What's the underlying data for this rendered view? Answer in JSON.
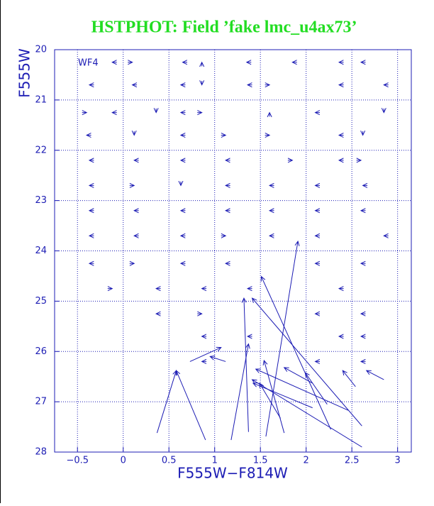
{
  "chart_data": {
    "type": "quiver",
    "title": "HSTPHOT: Field ’fake lmc_u4ax73’",
    "annotation": "WF4",
    "xlabel": "F555W−F814W",
    "ylabel": "F555W",
    "xlim": [
      -0.75,
      3.15
    ],
    "ylim": [
      28,
      20
    ],
    "xticks": [
      {
        "value": -0.5,
        "label": "−0.5"
      },
      0,
      0.5,
      1,
      1.5,
      2,
      2.5,
      3
    ],
    "yticks": [
      20,
      21,
      22,
      23,
      24,
      25,
      26,
      27,
      28
    ],
    "grid": true,
    "color": "#1c1cb4",
    "arrows": [
      [
        -0.07,
        20.25,
        -0.12,
        20.25
      ],
      [
        0.05,
        20.25,
        0.1,
        20.25
      ],
      [
        0.7,
        20.25,
        0.65,
        20.25
      ],
      [
        0.86,
        20.33,
        0.86,
        20.25
      ],
      [
        1.4,
        20.25,
        1.35,
        20.25
      ],
      [
        1.9,
        20.25,
        1.85,
        20.25
      ],
      [
        2.41,
        20.25,
        2.36,
        20.25
      ],
      [
        2.65,
        20.25,
        2.6,
        20.25
      ],
      [
        -0.32,
        20.7,
        -0.37,
        20.7
      ],
      [
        0.15,
        20.7,
        0.1,
        20.7
      ],
      [
        0.68,
        20.7,
        0.63,
        20.7
      ],
      [
        0.86,
        20.62,
        0.86,
        20.7
      ],
      [
        1.41,
        20.7,
        1.36,
        20.7
      ],
      [
        1.55,
        20.7,
        1.6,
        20.7
      ],
      [
        2.41,
        20.7,
        2.36,
        20.7
      ],
      [
        2.9,
        20.7,
        2.85,
        20.7
      ],
      [
        -0.45,
        21.25,
        -0.4,
        21.25
      ],
      [
        -0.07,
        21.25,
        -0.12,
        21.25
      ],
      [
        0.36,
        21.17,
        0.36,
        21.25
      ],
      [
        0.68,
        21.25,
        0.63,
        21.25
      ],
      [
        0.81,
        21.25,
        0.86,
        21.25
      ],
      [
        1.6,
        21.33,
        1.6,
        21.25
      ],
      [
        2.15,
        21.25,
        2.1,
        21.25
      ],
      [
        2.85,
        21.17,
        2.85,
        21.25
      ],
      [
        -0.35,
        21.7,
        -0.4,
        21.7
      ],
      [
        0.12,
        21.62,
        0.12,
        21.7
      ],
      [
        0.68,
        21.7,
        0.63,
        21.7
      ],
      [
        1.07,
        21.7,
        1.12,
        21.7
      ],
      [
        1.55,
        21.7,
        1.6,
        21.7
      ],
      [
        2.41,
        21.7,
        2.36,
        21.7
      ],
      [
        2.62,
        21.62,
        2.62,
        21.7
      ],
      [
        -0.32,
        22.2,
        -0.37,
        22.2
      ],
      [
        0.17,
        22.2,
        0.12,
        22.2
      ],
      [
        0.68,
        22.2,
        0.63,
        22.2
      ],
      [
        1.17,
        22.2,
        1.12,
        22.2
      ],
      [
        1.8,
        22.2,
        1.85,
        22.2
      ],
      [
        2.41,
        22.2,
        2.36,
        22.2
      ],
      [
        2.55,
        22.2,
        2.6,
        22.2
      ],
      [
        -0.32,
        22.7,
        -0.37,
        22.7
      ],
      [
        0.07,
        22.7,
        0.12,
        22.7
      ],
      [
        0.63,
        22.62,
        0.63,
        22.7
      ],
      [
        1.17,
        22.7,
        1.12,
        22.7
      ],
      [
        1.65,
        22.7,
        1.6,
        22.7
      ],
      [
        2.15,
        22.7,
        2.1,
        22.7
      ],
      [
        2.67,
        22.7,
        2.62,
        22.7
      ],
      [
        -0.32,
        23.2,
        -0.37,
        23.2
      ],
      [
        0.17,
        23.2,
        0.12,
        23.2
      ],
      [
        0.68,
        23.2,
        0.63,
        23.2
      ],
      [
        1.17,
        23.2,
        1.12,
        23.2
      ],
      [
        1.65,
        23.2,
        1.6,
        23.2
      ],
      [
        2.15,
        23.2,
        2.1,
        23.2
      ],
      [
        2.65,
        23.2,
        2.6,
        23.2
      ],
      [
        -0.32,
        23.7,
        -0.37,
        23.7
      ],
      [
        0.17,
        23.7,
        0.12,
        23.7
      ],
      [
        0.68,
        23.7,
        0.63,
        23.7
      ],
      [
        1.07,
        23.7,
        1.12,
        23.7
      ],
      [
        1.65,
        23.7,
        1.6,
        23.7
      ],
      [
        2.15,
        23.7,
        2.1,
        23.7
      ],
      [
        2.9,
        23.7,
        2.85,
        23.7
      ],
      [
        -0.32,
        24.25,
        -0.37,
        24.25
      ],
      [
        0.07,
        24.25,
        0.12,
        24.25
      ],
      [
        0.68,
        24.25,
        0.63,
        24.25
      ],
      [
        1.17,
        24.25,
        1.12,
        24.25
      ],
      [
        2.15,
        24.25,
        2.1,
        24.25
      ],
      [
        2.65,
        24.25,
        2.6,
        24.25
      ],
      [
        -0.17,
        24.75,
        -0.12,
        24.75
      ],
      [
        0.41,
        24.75,
        0.36,
        24.75
      ],
      [
        0.91,
        24.75,
        0.86,
        24.75
      ],
      [
        1.41,
        24.75,
        1.36,
        24.75
      ],
      [
        2.41,
        24.75,
        2.36,
        24.75
      ],
      [
        0.41,
        25.25,
        0.36,
        25.25
      ],
      [
        0.81,
        25.25,
        0.86,
        25.25
      ],
      [
        2.15,
        25.25,
        2.1,
        25.25
      ],
      [
        2.65,
        25.25,
        2.6,
        25.25
      ],
      [
        0.91,
        25.7,
        0.86,
        25.7
      ],
      [
        1.41,
        25.7,
        1.36,
        25.7
      ],
      [
        2.41,
        25.7,
        2.36,
        25.7
      ],
      [
        2.65,
        25.7,
        2.6,
        25.7
      ],
      [
        0.91,
        26.2,
        0.86,
        26.2
      ],
      [
        2.15,
        26.2,
        2.1,
        26.2
      ],
      [
        2.65,
        26.2,
        2.6,
        26.2
      ],
      [
        0.37,
        27.62,
        0.58,
        26.38
      ],
      [
        0.9,
        27.76,
        0.58,
        26.38
      ],
      [
        0.73,
        26.2,
        1.07,
        25.92
      ],
      [
        1.12,
        26.2,
        0.95,
        26.1
      ],
      [
        1.18,
        27.76,
        1.37,
        25.85
      ],
      [
        1.37,
        27.6,
        1.32,
        24.94
      ],
      [
        1.56,
        27.69,
        1.91,
        23.81
      ],
      [
        2.27,
        27.55,
        1.51,
        24.51
      ],
      [
        2.61,
        27.48,
        1.41,
        24.94
      ],
      [
        2.61,
        27.9,
        1.41,
        26.56
      ],
      [
        2.46,
        27.17,
        1.45,
        26.35
      ],
      [
        2.07,
        27.12,
        1.42,
        26.63
      ],
      [
        1.76,
        27.62,
        1.54,
        26.18
      ],
      [
        1.72,
        27.33,
        1.49,
        26.63
      ],
      [
        2.85,
        26.56,
        2.66,
        26.38
      ],
      [
        2.54,
        26.7,
        2.4,
        26.38
      ],
      [
        2.23,
        27.05,
        1.99,
        26.42
      ],
      [
        2.07,
        26.63,
        1.76,
        26.32
      ]
    ]
  }
}
